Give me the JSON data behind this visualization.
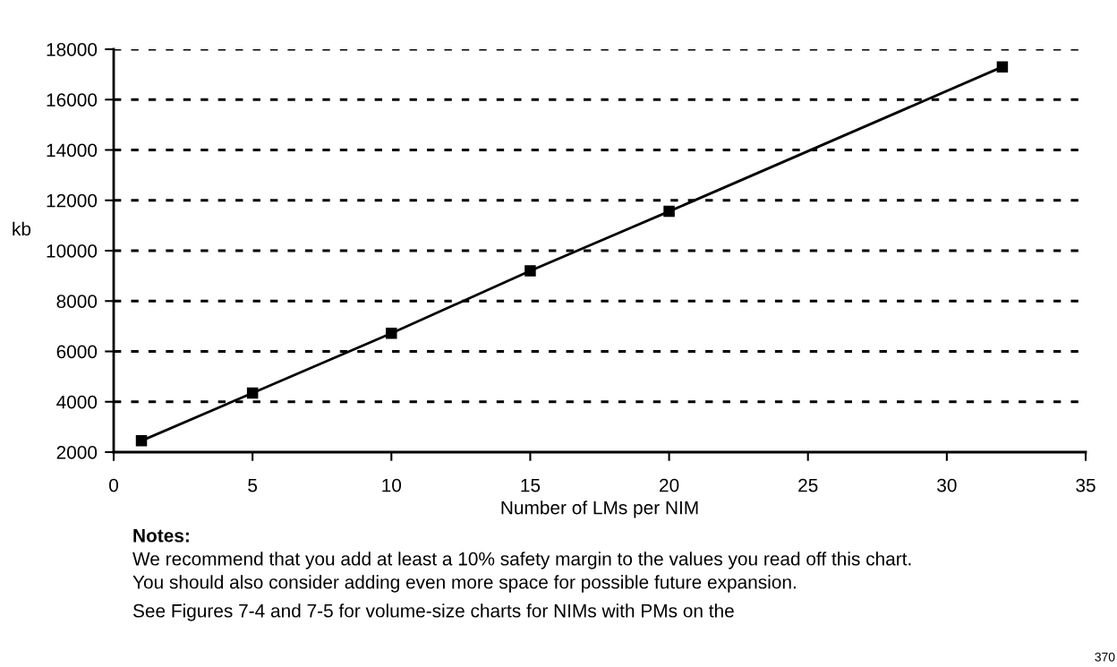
{
  "chart_data": {
    "type": "line",
    "xlabel": "Number of LMs per NIM",
    "ylabel": "kb",
    "x": [
      1,
      5,
      10,
      15,
      20,
      32
    ],
    "series": [
      {
        "color": "#000000",
        "values": [
          2450,
          4350,
          6720,
          9200,
          11560,
          17300
        ]
      }
    ],
    "marker": "square",
    "line_style": "solid",
    "xlim": [
      0,
      35
    ],
    "xticks": [
      0,
      5,
      10,
      15,
      20,
      25,
      30,
      35
    ],
    "ylim": [
      2000,
      18000
    ],
    "yticks": [
      2000,
      4000,
      6000,
      8000,
      10000,
      12000,
      14000,
      16000,
      18000
    ],
    "grid": "y",
    "legend": false,
    "annotations": [
      "Notes:",
      "We recommend that you add at least a 10% safety margin to the values you read off this chart.",
      "You should also consider adding even more space for possible future expansion.",
      "See Figures 7-4 and 7-5 for volume-size charts for NIMs with PMs on the",
      "370"
    ]
  }
}
